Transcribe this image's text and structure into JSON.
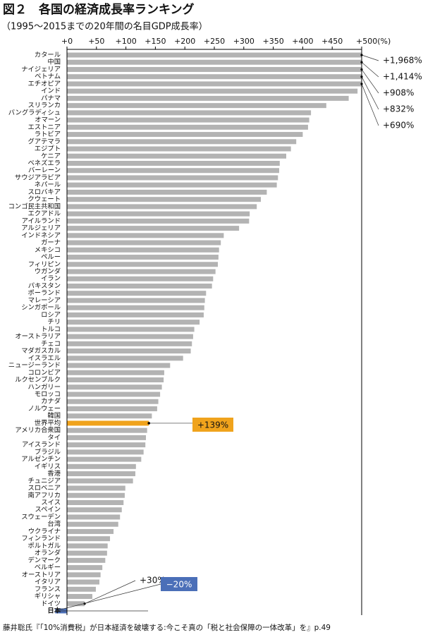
{
  "chart_data": {
    "type": "bar",
    "orientation": "horizontal",
    "title": "図２　各国の経済成長率ランキング",
    "subtitle": "（1995〜2015までの20年間の名目GDP成長率）",
    "source": "藤井聡氏『「10%消費税」が日本経済を破壊する:今こそ真の「税と社会保障の一体改革」を』p.49",
    "categories": [
      "カタール",
      "中国",
      "ナイジェリア",
      "ベトナム",
      "エチオピア",
      "インド",
      "パナマ",
      "スリランカ",
      "バングラディシュ",
      "オマーン",
      "エストニア",
      "ラトビア",
      "グアテマラ",
      "エジプト",
      "ケニア",
      "ベネズエラ",
      "バーレーン",
      "サウジアラビア",
      "ネパール",
      "スロバキア",
      "クウェート",
      "コンゴ民主共和国",
      "エクアドル",
      "アイルランド",
      "アルジェリア",
      "インドネシア",
      "ガーナ",
      "メキシコ",
      "ペルー",
      "フィリピン",
      "ウガンダ",
      "イラン",
      "パキスタン",
      "ポーランド",
      "マレーシア",
      "シンガポール",
      "ロシア",
      "チリ",
      "トルコ",
      "オーストラリア",
      "チェコ",
      "マダガスカル",
      "イスラエル",
      "ニュージーランド",
      "コロンビア",
      "ルクセンブルク",
      "ハンガリー",
      "モロッコ",
      "カナダ",
      "ノルウェー",
      "韓国",
      "世界平均",
      "アメリカ合衆国",
      "タイ",
      "アイスランド",
      "ブラジル",
      "アルゼンチン",
      "イギリス",
      "香港",
      "チュニジア",
      "スロベニア",
      "南アフリカ",
      "スイス",
      "スペイン",
      "スウェーデン",
      "台湾",
      "ウクライナ",
      "フィンランド",
      "ポルトガル",
      "オランダ",
      "デンマーク",
      "ベルギー",
      "オーストリア",
      "イタリア",
      "フランス",
      "ギリシャ",
      "ドイツ",
      "日本"
    ],
    "values": [
      1968,
      1414,
      908,
      832,
      690,
      493,
      478,
      440,
      414,
      411,
      409,
      400,
      389,
      380,
      372,
      361,
      360,
      358,
      356,
      339,
      329,
      322,
      310,
      309,
      292,
      266,
      261,
      258,
      257,
      256,
      252,
      248,
      246,
      236,
      234,
      233,
      232,
      225,
      216,
      214,
      212,
      210,
      197,
      175,
      165,
      164,
      161,
      158,
      155,
      153,
      144,
      139,
      136,
      134,
      133,
      130,
      126,
      117,
      116,
      112,
      99,
      98,
      96,
      93,
      90,
      87,
      79,
      73,
      69,
      68,
      65,
      60,
      57,
      55,
      49,
      43,
      30,
      -20
    ],
    "value_labels": [
      "+1,968%",
      "+1,414%",
      "+908%",
      "+832%",
      "+690%",
      null,
      null,
      null,
      null,
      null,
      null,
      null,
      null,
      null,
      null,
      null,
      null,
      null,
      null,
      null,
      null,
      null,
      null,
      null,
      null,
      null,
      null,
      null,
      null,
      null,
      null,
      null,
      null,
      null,
      null,
      null,
      null,
      null,
      null,
      null,
      null,
      null,
      null,
      null,
      null,
      null,
      null,
      null,
      null,
      null,
      null,
      "+139%",
      null,
      null,
      null,
      null,
      null,
      null,
      null,
      null,
      null,
      null,
      null,
      null,
      null,
      null,
      null,
      null,
      null,
      null,
      null,
      null,
      null,
      null,
      null,
      null,
      "+30%",
      "−20%"
    ],
    "color": "#b3b3b3",
    "highlight_colors": {
      "世界平均": "#f0a31c",
      "日本": "#4b6fb8"
    },
    "xlim": [
      0,
      500
    ],
    "xticks": [
      {
        "value": 0,
        "label": "+0"
      },
      {
        "value": 50,
        "label": "+50"
      },
      {
        "value": 100,
        "label": "+100"
      },
      {
        "value": 150,
        "label": "+150"
      },
      {
        "value": 200,
        "label": "+200"
      },
      {
        "value": 250,
        "label": "+250"
      },
      {
        "value": 300,
        "label": "+300"
      },
      {
        "value": 350,
        "label": "+350"
      },
      {
        "value": 400,
        "label": "+400"
      },
      {
        "value": 450,
        "label": "+450"
      },
      {
        "value": 500,
        "label": "+500(%)"
      }
    ]
  }
}
